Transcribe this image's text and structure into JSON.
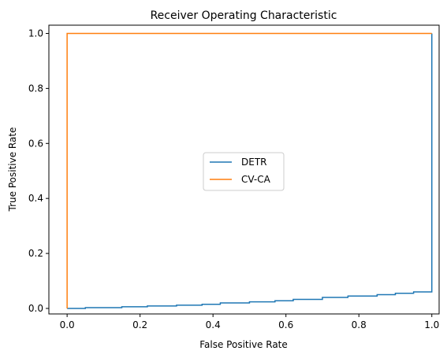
{
  "chart_data": {
    "type": "line",
    "title": "Receiver Operating Characteristic",
    "xlabel": "False Positive Rate",
    "ylabel": "True Positive Rate",
    "xlim": [
      -0.05,
      1.02
    ],
    "ylim": [
      -0.02,
      1.03
    ],
    "xticks": [
      0.0,
      0.2,
      0.4,
      0.6,
      0.8,
      1.0
    ],
    "yticks": [
      0.0,
      0.2,
      0.4,
      0.6,
      0.8,
      1.0
    ],
    "xtick_labels": [
      "0.0",
      "0.2",
      "0.4",
      "0.6",
      "0.8",
      "1.0"
    ],
    "ytick_labels": [
      "0.0",
      "0.2",
      "0.4",
      "0.6",
      "0.8",
      "1.0"
    ],
    "grid": false,
    "legend_position": "center",
    "series": [
      {
        "name": "DETR",
        "color": "#1f77b4",
        "step": true,
        "x": [
          0.0,
          0.05,
          0.15,
          0.22,
          0.3,
          0.37,
          0.42,
          0.5,
          0.57,
          0.62,
          0.7,
          0.77,
          0.85,
          0.9,
          0.95,
          1.0,
          1.0
        ],
        "y": [
          0.0,
          0.003,
          0.006,
          0.009,
          0.012,
          0.015,
          0.02,
          0.024,
          0.028,
          0.033,
          0.04,
          0.045,
          0.05,
          0.055,
          0.06,
          0.068,
          1.0
        ]
      },
      {
        "name": "CV-CA",
        "color": "#ff7f0e",
        "step": true,
        "x": [
          0.0,
          0.0,
          1.0,
          1.0
        ],
        "y": [
          0.0,
          1.0,
          1.0,
          1.0
        ]
      }
    ]
  }
}
